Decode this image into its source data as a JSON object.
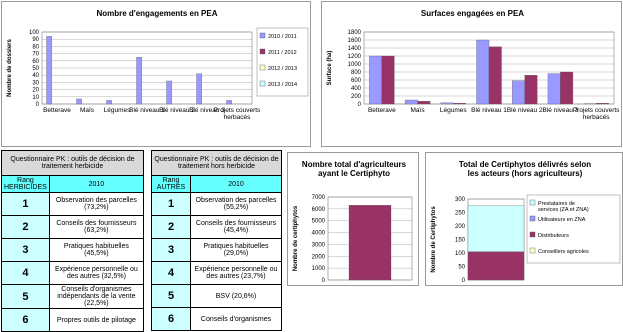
{
  "chart_data": [
    {
      "type": "bar",
      "title": "Nombre d'engagements en PEA",
      "y_label": "Nombre de dossiers",
      "categories": [
        "Betterave",
        "Maïs",
        "Légumes",
        "Blé niveau 1",
        "Blé niveau 2",
        "Blé niveau 3",
        "Projets couverts herbacés"
      ],
      "series": [
        {
          "name": "2010 / 2011",
          "color": "#9999ff",
          "values": [
            94,
            7,
            5,
            65,
            32,
            42,
            5
          ]
        },
        {
          "name": "2011 / 2012",
          "color": "#993366",
          "values": [
            0,
            0,
            0,
            0,
            0,
            0,
            0
          ]
        },
        {
          "name": "2012 / 2013",
          "color": "#ffffcc",
          "values": [
            0,
            0,
            0,
            0,
            0,
            0,
            0
          ]
        },
        {
          "name": "2013 / 2014",
          "color": "#ccffff",
          "values": [
            0,
            0,
            0,
            0,
            0,
            0,
            0
          ]
        }
      ],
      "ylim": [
        0,
        100
      ],
      "yticks": [
        0,
        10,
        20,
        30,
        40,
        50,
        60,
        70,
        80,
        90,
        100
      ],
      "grid": true,
      "legend": "right"
    },
    {
      "type": "bar",
      "title": "Surfaces engagées en PEA",
      "y_label": "Surface (ha)",
      "categories": [
        "Betterave",
        "Maïs",
        "Légumes",
        "Blé niveau 1",
        "Blé niveau 2",
        "Blé niveau 3",
        "Projets couverts herbacés"
      ],
      "series": [
        {
          "color": "#9999ff",
          "values": [
            1200,
            100,
            30,
            1600,
            580,
            760,
            10
          ]
        },
        {
          "color": "#993366",
          "values": [
            1200,
            70,
            20,
            1430,
            720,
            800,
            20
          ]
        }
      ],
      "ylim": [
        0,
        1800
      ],
      "yticks": [
        0,
        200,
        400,
        600,
        800,
        1000,
        1200,
        1400,
        1600,
        1800
      ],
      "grid": true
    },
    {
      "type": "bar",
      "title": "Nombre total d'agriculteurs ayant le Certiphyto",
      "y_label": "Nombre de certiphytos",
      "categories": [
        null
      ],
      "series": [
        {
          "color": "#993366",
          "values": [
            6300
          ]
        }
      ],
      "ylim": [
        0,
        7000
      ],
      "yticks": [
        0,
        1000,
        2000,
        3000,
        4000,
        5000,
        6000,
        7000
      ],
      "grid": true
    },
    {
      "type": "stacked",
      "title": "Total de Certiphytos délivrés selon les acteurs (hors agriculteurs)",
      "y_label": "Nombre de Certiphytos",
      "categories": [
        null
      ],
      "series": [
        {
          "name": "Conseillers agricoles",
          "color": "#ffffcc",
          "values": [
            0
          ]
        },
        {
          "name": "Distributeurs",
          "color": "#993366",
          "values": [
            105
          ]
        },
        {
          "name": "Utilisateurs en ZNA",
          "color": "#9999ff",
          "values": [
            0
          ]
        },
        {
          "name": "Prestataires de services (ZA et ZNA)",
          "color": "#ccffff",
          "values": [
            170
          ]
        }
      ],
      "ylim": [
        0,
        300
      ],
      "yticks": [
        0,
        50,
        100,
        150,
        200,
        250,
        300
      ],
      "grid": true,
      "legend": "right"
    }
  ],
  "tables": [
    {
      "title": "Questionnaire PK : outils de décision de traitement herbicide",
      "header": [
        "Rang HERBICIDES",
        "2010"
      ],
      "rows": [
        [
          1,
          "Observation des parcelles (73,2%)"
        ],
        [
          2,
          "Conseils des fournisseurs (63,2%)"
        ],
        [
          3,
          "Pratiques habituelles (45,5%)"
        ],
        [
          4,
          "Expérience personnelle ou des autres (32,5%)"
        ],
        [
          5,
          "Conseils d'organismes indépendants de la vente (22,5%)"
        ],
        [
          6,
          "Propres outils de pilotage"
        ]
      ]
    },
    {
      "title": "Questionnaire PK : outils de décision de traitement hors herbicide",
      "header": [
        "Rang AUTRES",
        "2010"
      ],
      "rows": [
        [
          1,
          "Observation des parcelles (55,2%)"
        ],
        [
          2,
          "Conseils des fournisseurs (45,4%)"
        ],
        [
          3,
          "Pratiques habituelles (29,0%)"
        ],
        [
          4,
          "Expérience personnelle ou des autres (23,7%)"
        ],
        [
          5,
          "BSV (20,6%)"
        ],
        [
          6,
          "Conseils d'organismes"
        ]
      ]
    }
  ]
}
